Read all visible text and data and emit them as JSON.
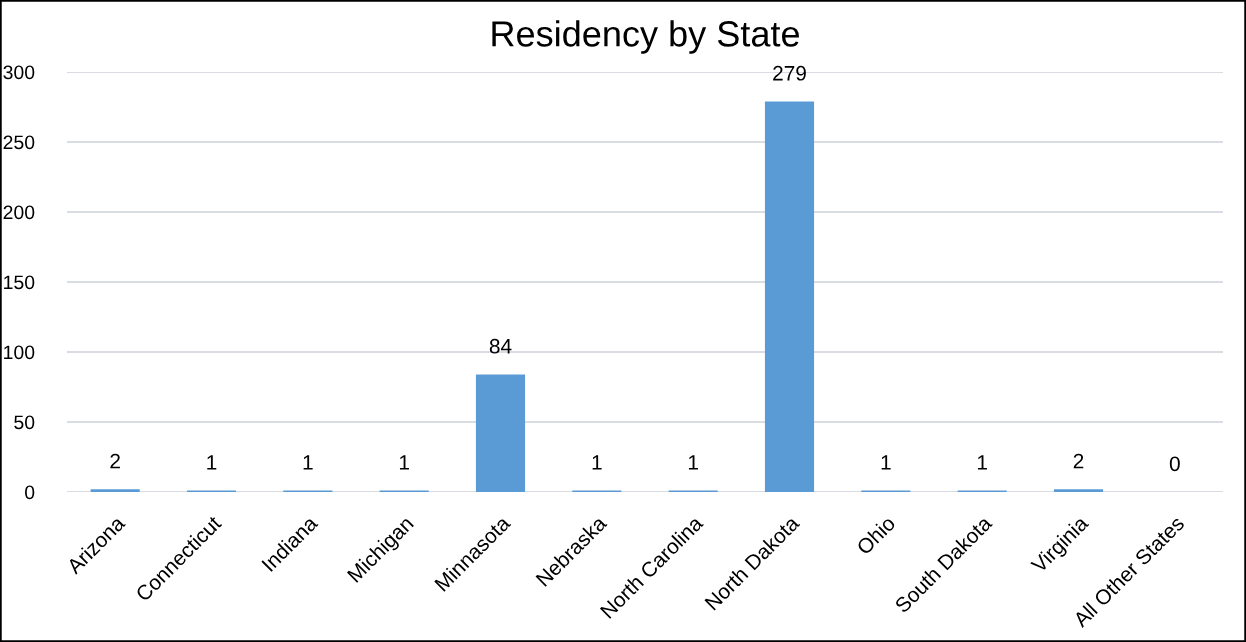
{
  "chart_data": {
    "type": "bar",
    "title": "Residency by State",
    "categories": [
      "Arizona",
      "Connecticut",
      "Indiana",
      "Michigan",
      "Minnasota",
      "Nebraska",
      "North Carolina",
      "North Dakota",
      "Ohio",
      "South Dakota",
      "Virginia",
      "All Other States"
    ],
    "values": [
      2,
      1,
      1,
      1,
      84,
      1,
      1,
      279,
      1,
      1,
      2,
      0
    ],
    "color": "#5b9bd5",
    "ylim": [
      0,
      300
    ],
    "yticks": [
      0,
      50,
      100,
      150,
      200,
      250,
      300
    ],
    "grid": "y",
    "data_labels": true
  }
}
